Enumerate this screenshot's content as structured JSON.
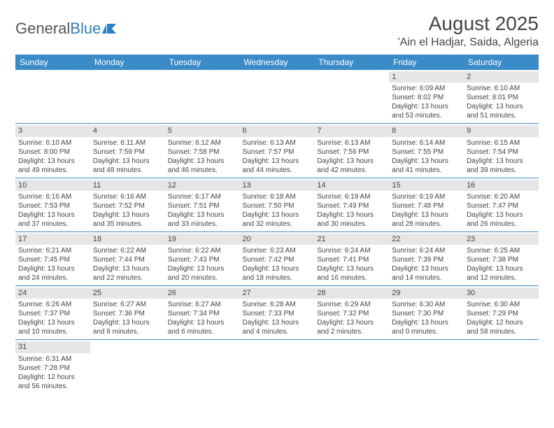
{
  "logo": {
    "part1": "General",
    "part2": "Blue"
  },
  "title": "August 2025",
  "location": "'Ain el Hadjar, Saida, Algeria",
  "colors": {
    "header_bg": "#3b8bc8",
    "header_text": "#ffffff",
    "daynum_bg": "#e6e6e6",
    "border": "#3b8bc8",
    "body_text": "#444444",
    "logo_gray": "#555555",
    "logo_blue": "#2d7fc1"
  },
  "weekdays": [
    "Sunday",
    "Monday",
    "Tuesday",
    "Wednesday",
    "Thursday",
    "Friday",
    "Saturday"
  ],
  "weeks": [
    [
      null,
      null,
      null,
      null,
      null,
      {
        "n": "1",
        "sr": "Sunrise: 6:09 AM",
        "ss": "Sunset: 8:02 PM",
        "d1": "Daylight: 13 hours",
        "d2": "and 53 minutes."
      },
      {
        "n": "2",
        "sr": "Sunrise: 6:10 AM",
        "ss": "Sunset: 8:01 PM",
        "d1": "Daylight: 13 hours",
        "d2": "and 51 minutes."
      }
    ],
    [
      {
        "n": "3",
        "sr": "Sunrise: 6:10 AM",
        "ss": "Sunset: 8:00 PM",
        "d1": "Daylight: 13 hours",
        "d2": "and 49 minutes."
      },
      {
        "n": "4",
        "sr": "Sunrise: 6:11 AM",
        "ss": "Sunset: 7:59 PM",
        "d1": "Daylight: 13 hours",
        "d2": "and 48 minutes."
      },
      {
        "n": "5",
        "sr": "Sunrise: 6:12 AM",
        "ss": "Sunset: 7:58 PM",
        "d1": "Daylight: 13 hours",
        "d2": "and 46 minutes."
      },
      {
        "n": "6",
        "sr": "Sunrise: 6:13 AM",
        "ss": "Sunset: 7:57 PM",
        "d1": "Daylight: 13 hours",
        "d2": "and 44 minutes."
      },
      {
        "n": "7",
        "sr": "Sunrise: 6:13 AM",
        "ss": "Sunset: 7:56 PM",
        "d1": "Daylight: 13 hours",
        "d2": "and 42 minutes."
      },
      {
        "n": "8",
        "sr": "Sunrise: 6:14 AM",
        "ss": "Sunset: 7:55 PM",
        "d1": "Daylight: 13 hours",
        "d2": "and 41 minutes."
      },
      {
        "n": "9",
        "sr": "Sunrise: 6:15 AM",
        "ss": "Sunset: 7:54 PM",
        "d1": "Daylight: 13 hours",
        "d2": "and 39 minutes."
      }
    ],
    [
      {
        "n": "10",
        "sr": "Sunrise: 6:16 AM",
        "ss": "Sunset: 7:53 PM",
        "d1": "Daylight: 13 hours",
        "d2": "and 37 minutes."
      },
      {
        "n": "11",
        "sr": "Sunrise: 6:16 AM",
        "ss": "Sunset: 7:52 PM",
        "d1": "Daylight: 13 hours",
        "d2": "and 35 minutes."
      },
      {
        "n": "12",
        "sr": "Sunrise: 6:17 AM",
        "ss": "Sunset: 7:51 PM",
        "d1": "Daylight: 13 hours",
        "d2": "and 33 minutes."
      },
      {
        "n": "13",
        "sr": "Sunrise: 6:18 AM",
        "ss": "Sunset: 7:50 PM",
        "d1": "Daylight: 13 hours",
        "d2": "and 32 minutes."
      },
      {
        "n": "14",
        "sr": "Sunrise: 6:19 AM",
        "ss": "Sunset: 7:49 PM",
        "d1": "Daylight: 13 hours",
        "d2": "and 30 minutes."
      },
      {
        "n": "15",
        "sr": "Sunrise: 6:19 AM",
        "ss": "Sunset: 7:48 PM",
        "d1": "Daylight: 13 hours",
        "d2": "and 28 minutes."
      },
      {
        "n": "16",
        "sr": "Sunrise: 6:20 AM",
        "ss": "Sunset: 7:47 PM",
        "d1": "Daylight: 13 hours",
        "d2": "and 26 minutes."
      }
    ],
    [
      {
        "n": "17",
        "sr": "Sunrise: 6:21 AM",
        "ss": "Sunset: 7:45 PM",
        "d1": "Daylight: 13 hours",
        "d2": "and 24 minutes."
      },
      {
        "n": "18",
        "sr": "Sunrise: 6:22 AM",
        "ss": "Sunset: 7:44 PM",
        "d1": "Daylight: 13 hours",
        "d2": "and 22 minutes."
      },
      {
        "n": "19",
        "sr": "Sunrise: 6:22 AM",
        "ss": "Sunset: 7:43 PM",
        "d1": "Daylight: 13 hours",
        "d2": "and 20 minutes."
      },
      {
        "n": "20",
        "sr": "Sunrise: 6:23 AM",
        "ss": "Sunset: 7:42 PM",
        "d1": "Daylight: 13 hours",
        "d2": "and 18 minutes."
      },
      {
        "n": "21",
        "sr": "Sunrise: 6:24 AM",
        "ss": "Sunset: 7:41 PM",
        "d1": "Daylight: 13 hours",
        "d2": "and 16 minutes."
      },
      {
        "n": "22",
        "sr": "Sunrise: 6:24 AM",
        "ss": "Sunset: 7:39 PM",
        "d1": "Daylight: 13 hours",
        "d2": "and 14 minutes."
      },
      {
        "n": "23",
        "sr": "Sunrise: 6:25 AM",
        "ss": "Sunset: 7:38 PM",
        "d1": "Daylight: 13 hours",
        "d2": "and 12 minutes."
      }
    ],
    [
      {
        "n": "24",
        "sr": "Sunrise: 6:26 AM",
        "ss": "Sunset: 7:37 PM",
        "d1": "Daylight: 13 hours",
        "d2": "and 10 minutes."
      },
      {
        "n": "25",
        "sr": "Sunrise: 6:27 AM",
        "ss": "Sunset: 7:36 PM",
        "d1": "Daylight: 13 hours",
        "d2": "and 8 minutes."
      },
      {
        "n": "26",
        "sr": "Sunrise: 6:27 AM",
        "ss": "Sunset: 7:34 PM",
        "d1": "Daylight: 13 hours",
        "d2": "and 6 minutes."
      },
      {
        "n": "27",
        "sr": "Sunrise: 6:28 AM",
        "ss": "Sunset: 7:33 PM",
        "d1": "Daylight: 13 hours",
        "d2": "and 4 minutes."
      },
      {
        "n": "28",
        "sr": "Sunrise: 6:29 AM",
        "ss": "Sunset: 7:32 PM",
        "d1": "Daylight: 13 hours",
        "d2": "and 2 minutes."
      },
      {
        "n": "29",
        "sr": "Sunrise: 6:30 AM",
        "ss": "Sunset: 7:30 PM",
        "d1": "Daylight: 13 hours",
        "d2": "and 0 minutes."
      },
      {
        "n": "30",
        "sr": "Sunrise: 6:30 AM",
        "ss": "Sunset: 7:29 PM",
        "d1": "Daylight: 12 hours",
        "d2": "and 58 minutes."
      }
    ],
    [
      {
        "n": "31",
        "sr": "Sunrise: 6:31 AM",
        "ss": "Sunset: 7:28 PM",
        "d1": "Daylight: 12 hours",
        "d2": "and 56 minutes."
      },
      null,
      null,
      null,
      null,
      null,
      null
    ]
  ]
}
